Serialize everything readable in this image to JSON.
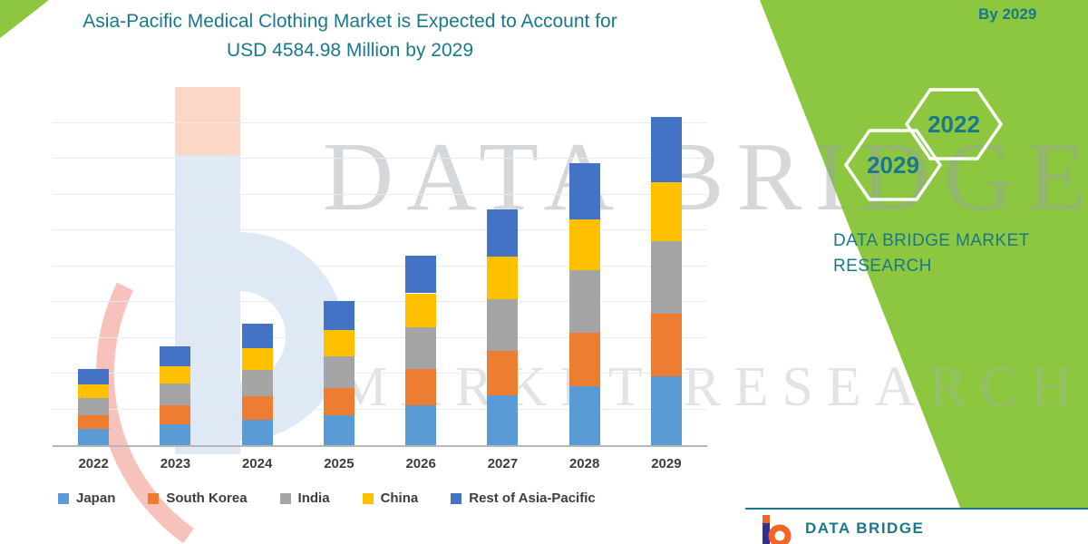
{
  "title": {
    "line1": "Asia-Pacific Medical Clothing Market is Expected to Account for",
    "line2": "USD 4584.98 Million by 2029"
  },
  "chart_data": {
    "type": "bar",
    "stacked": true,
    "title": "Asia-Pacific Medical Clothing Market is Expected to Account for USD 4584.98 Million by 2029",
    "xlabel": "",
    "ylabel": "",
    "ylim": [
      0,
      4900
    ],
    "grid": true,
    "legend_position": "bottom",
    "categories": [
      "2022",
      "2023",
      "2024",
      "2025",
      "2026",
      "2027",
      "2028",
      "2029"
    ],
    "series": [
      {
        "name": "Japan",
        "color": "#5B9BD5",
        "values": [
          223,
          290,
          357,
          422,
          557,
          691,
          827,
          963
        ]
      },
      {
        "name": "South Korea",
        "color": "#ED7D31",
        "values": [
          201,
          262,
          323,
          382,
          504,
          625,
          749,
          871
        ]
      },
      {
        "name": "India",
        "color": "#A5A5A5",
        "values": [
          233,
          304,
          374,
          442,
          583,
          724,
          867,
          1009
        ]
      },
      {
        "name": "China",
        "color": "#FFC000",
        "values": [
          191,
          248,
          306,
          362,
          477,
          592,
          709,
          825
        ]
      },
      {
        "name": "Rest of Asia-Pacific",
        "color": "#4472C4",
        "values": [
          212,
          276,
          340,
          402,
          530,
          658,
          788,
          917
        ]
      }
    ]
  },
  "watermark": {
    "line1": "DATA BRIDGE",
    "line2": "MARKET RESEARCH"
  },
  "side": {
    "top_right_label": "By 2029",
    "hexagon_labels": [
      "2029",
      "2022"
    ],
    "brand_line1": "DATA BRIDGE MARKET",
    "brand_line2": "RESEARCH"
  },
  "footer": {
    "brand": "DATA BRIDGE"
  },
  "colors": {
    "teal": "#19798B",
    "green": "#8DC63F"
  }
}
